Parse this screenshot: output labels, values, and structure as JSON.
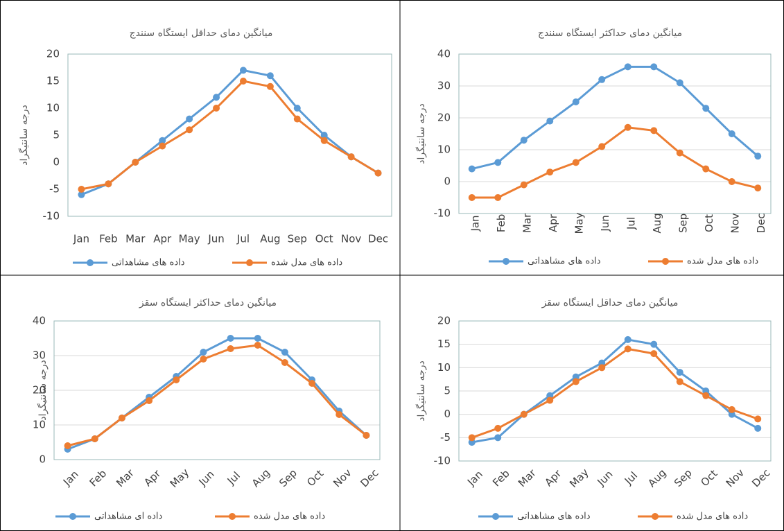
{
  "chart_data": [
    {
      "type": "line",
      "title": "میانگین دمای حداقل ایستگاه سنندج",
      "y_label": "درجه سانتیگراد",
      "categories": [
        "Jan",
        "Feb",
        "Mar",
        "Apr",
        "May",
        "Jun",
        "Jul",
        "Aug",
        "Sep",
        "Oct",
        "Nov",
        "Dec"
      ],
      "series": [
        {
          "name": "داده های مشاهداتی",
          "color": "#5b9bd5",
          "values": [
            -6,
            -4,
            0,
            4,
            8,
            12,
            17,
            16,
            10,
            5,
            1,
            -2
          ]
        },
        {
          "name": "داده های مدل شده",
          "color": "#ed7d31",
          "values": [
            -5,
            -4,
            0,
            3,
            6,
            10,
            15,
            14,
            8,
            4,
            1,
            -2
          ]
        }
      ],
      "ylim": [
        -10,
        20
      ],
      "yticks": [
        -10,
        -5,
        0,
        5,
        10,
        15,
        20
      ],
      "grid": false
    },
    {
      "type": "line",
      "title": "میانگین دمای حداکثر ایستگاه سنندج",
      "y_label": "درجه سانتیگراد",
      "categories": [
        "Jan",
        "Feb",
        "Mar",
        "Apr",
        "May",
        "Jun",
        "Jul",
        "Aug",
        "Sep",
        "Oct",
        "Nov",
        "Dec"
      ],
      "series": [
        {
          "name": "داده های مشاهداتی",
          "color": "#5b9bd5",
          "values": [
            4,
            6,
            13,
            19,
            25,
            32,
            36,
            36,
            31,
            23,
            15,
            8
          ]
        },
        {
          "name": "داده های مدل شده",
          "color": "#ed7d31",
          "values": [
            -5,
            -5,
            -1,
            3,
            6,
            11,
            17,
            16,
            9,
            4,
            0,
            -2
          ]
        }
      ],
      "ylim": [
        -10,
        40
      ],
      "yticks": [
        -10,
        0,
        10,
        20,
        30,
        40
      ],
      "grid": true
    },
    {
      "type": "line",
      "title": "میانگین دمای حداکثر ایستگاه سقز",
      "y_label": "درجه سانتیگراد",
      "categories": [
        "Jan",
        "Feb",
        "Mar",
        "Apr",
        "May",
        "Jun",
        "Jul",
        "Aug",
        "Sep",
        "Oct",
        "Nov",
        "Dec"
      ],
      "series": [
        {
          "name": "داده ای مشاهداتی",
          "color": "#5b9bd5",
          "values": [
            3,
            6,
            12,
            18,
            24,
            31,
            35,
            35,
            31,
            23,
            14,
            7
          ]
        },
        {
          "name": "داده های مدل شده",
          "color": "#ed7d31",
          "values": [
            4,
            6,
            12,
            17,
            23,
            29,
            32,
            33,
            28,
            22,
            13,
            7
          ]
        }
      ],
      "ylim": [
        0,
        40
      ],
      "yticks": [
        0,
        10,
        20,
        30,
        40
      ],
      "grid": true
    },
    {
      "type": "line",
      "title": "میانگین دمای حداقل ایستگاه سقز",
      "y_label": "درجه سانتیگراد",
      "categories": [
        "Jan",
        "Feb",
        "Mar",
        "Apr",
        "May",
        "Jun",
        "Jul",
        "Aug",
        "Sep",
        "Oct",
        "Nov",
        "Dec"
      ],
      "series": [
        {
          "name": "داده های مشاهداتی",
          "color": "#5b9bd5",
          "values": [
            -6,
            -5,
            0,
            4,
            8,
            11,
            16,
            15,
            9,
            5,
            0,
            -3
          ]
        },
        {
          "name": "داده های مدل شده",
          "color": "#ed7d31",
          "values": [
            -5,
            -3,
            0,
            3,
            7,
            10,
            14,
            13,
            7,
            4,
            1,
            -1
          ]
        }
      ],
      "ylim": [
        -10,
        20
      ],
      "yticks": [
        -10,
        -5,
        0,
        5,
        10,
        15,
        20
      ],
      "grid": true
    }
  ]
}
